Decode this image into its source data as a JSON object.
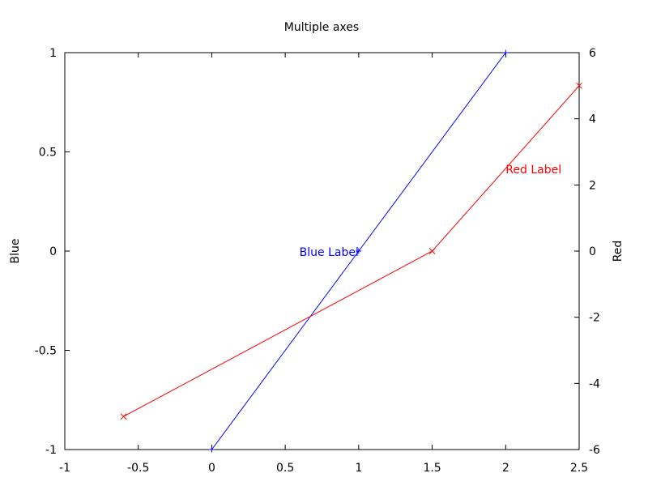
{
  "chart_data": {
    "type": "line",
    "title": "Multiple axes",
    "xlim": [
      -1,
      2.5
    ],
    "ylim_left": [
      -1,
      1
    ],
    "ylim_right": [
      -6,
      6
    ],
    "ylabel_left": "Blue",
    "ylabel_right": "Red",
    "grid": false,
    "x_ticks": [
      "-1",
      "-0.5",
      "0",
      "0.5",
      "1",
      "1.5",
      "2",
      "2.5"
    ],
    "y_left_ticks": [
      "-1",
      "-0.5",
      "0",
      "0.5",
      "1"
    ],
    "y_right_ticks": [
      "-6",
      "-4",
      "-2",
      "0",
      "2",
      "4",
      "6"
    ],
    "series": [
      {
        "axis": "left",
        "color": "#0000ff",
        "marker": "plus",
        "points": [
          [
            0,
            -1
          ],
          [
            1,
            0
          ],
          [
            2,
            1
          ]
        ],
        "label": {
          "text": "Blue Label",
          "at": [
            1,
            0
          ],
          "align": "end"
        }
      },
      {
        "axis": "right",
        "color": "#ff0000",
        "marker": "cross",
        "points": [
          [
            -0.6,
            -5
          ],
          [
            1.5,
            0
          ],
          [
            2.5,
            5
          ]
        ],
        "label": {
          "text": "Red Label",
          "at": [
            2,
            2.5
          ],
          "align": "start"
        }
      }
    ]
  }
}
